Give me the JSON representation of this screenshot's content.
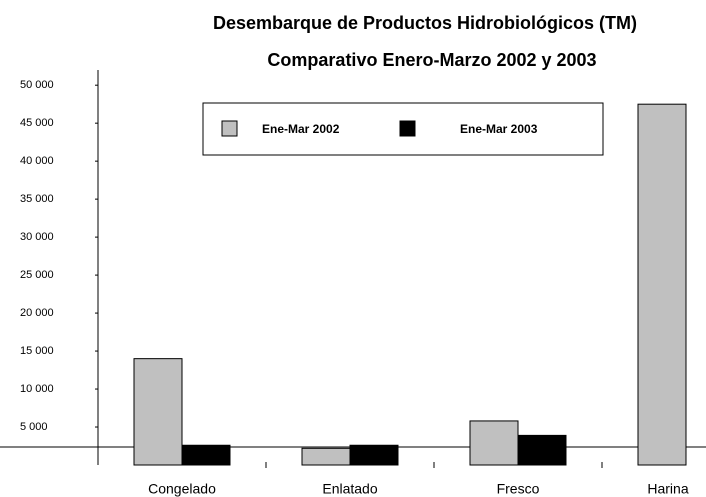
{
  "chart_data": {
    "type": "bar",
    "title": "Desembarque de Productos Hidrobiológicos (TM)",
    "subtitle": "Comparativo Enero-Marzo 2002 y 2003",
    "categories": [
      "Congelado",
      "Enlatado",
      "Fresco",
      "Harina"
    ],
    "series": [
      {
        "name": "Ene-Mar 2002",
        "color": "#c0c0c0",
        "values": [
          14000,
          2200,
          5800,
          47500
        ]
      },
      {
        "name": "Ene-Mar  2003",
        "color": "#000000",
        "values": [
          2600,
          2600,
          3900,
          null
        ]
      }
    ],
    "ylim": [
      0,
      52000
    ],
    "yticks": [
      {
        "value": 5000,
        "label": "5 000"
      },
      {
        "value": 10000,
        "label": "10 000"
      },
      {
        "value": 15000,
        "label": "15 000"
      },
      {
        "value": 20000,
        "label": "20 000"
      },
      {
        "value": 25000,
        "label": "25 000"
      },
      {
        "value": 30000,
        "label": "30 000"
      },
      {
        "value": 35000,
        "label": "35 000"
      },
      {
        "value": 40000,
        "label": "40 000"
      },
      {
        "value": 45000,
        "label": "45 000"
      },
      {
        "value": 50000,
        "label": "50 000"
      }
    ],
    "grid": false
  }
}
